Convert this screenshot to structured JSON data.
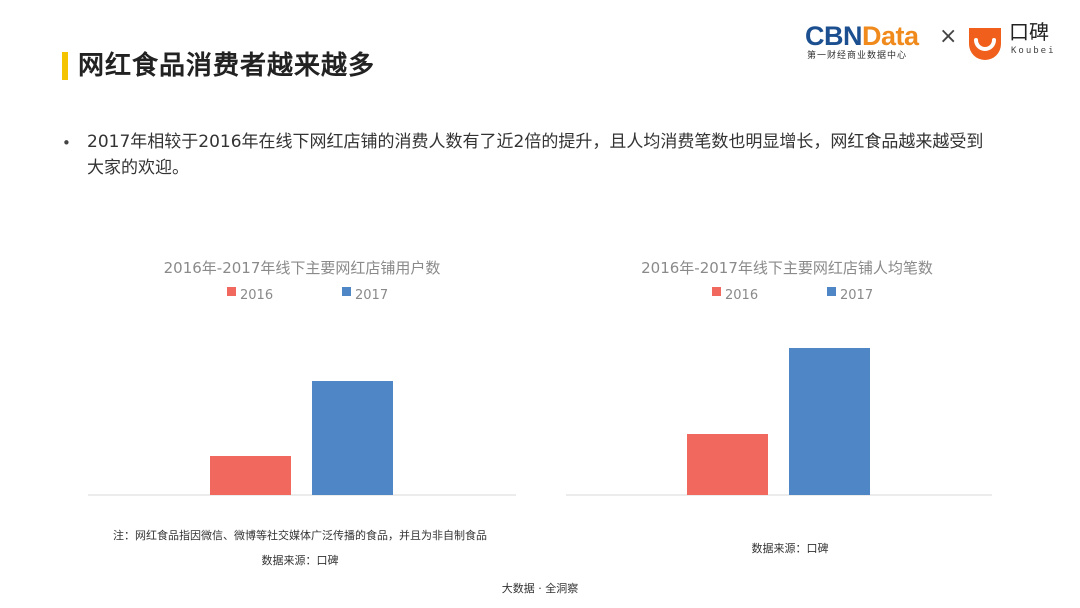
{
  "header": {
    "title": "网红食品消费者越来越多"
  },
  "logos": {
    "cbn_part1": "CBN",
    "cbn_part2": "Data",
    "cbn_sub": "第一财经商业数据中心",
    "times": "×",
    "koubei_cn": "口碑",
    "koubei_en": "Koubei"
  },
  "bullet": {
    "marker": "•",
    "text": "2017年相较于2016年在线下网红店铺的消费人数有了近2倍的提升，且人均消费笔数也明显增长，网红食品越来越受到大家的欢迎。"
  },
  "colors": {
    "2016": "#f1685f",
    "2017": "#4f86c6",
    "accent": "#f5c400"
  },
  "chart_data": [
    {
      "type": "bar",
      "title": "2016年-2017年线下主要网红店铺用户数",
      "legend_position": "top",
      "categories": [
        ""
      ],
      "series": [
        {
          "name": "2016",
          "values": [
            39
          ]
        },
        {
          "name": "2017",
          "values": [
            114
          ]
        }
      ],
      "ylim": [
        0,
        160
      ],
      "grid": false
    },
    {
      "type": "bar",
      "title": "2016年-2017年线下主要网红店铺人均笔数",
      "legend_position": "top",
      "categories": [
        ""
      ],
      "series": [
        {
          "name": "2016",
          "values": [
            61
          ]
        },
        {
          "name": "2017",
          "values": [
            147
          ]
        }
      ],
      "ylim": [
        0,
        160
      ],
      "grid": false
    }
  ],
  "notes": {
    "footnote": "注：网红食品指因微信、微博等社交媒体广泛传播的食品，并且为非自制食品",
    "source_left": "数据来源：口碑",
    "source_right": "数据来源：口碑",
    "bottom": "大数据 · 全洞察"
  }
}
